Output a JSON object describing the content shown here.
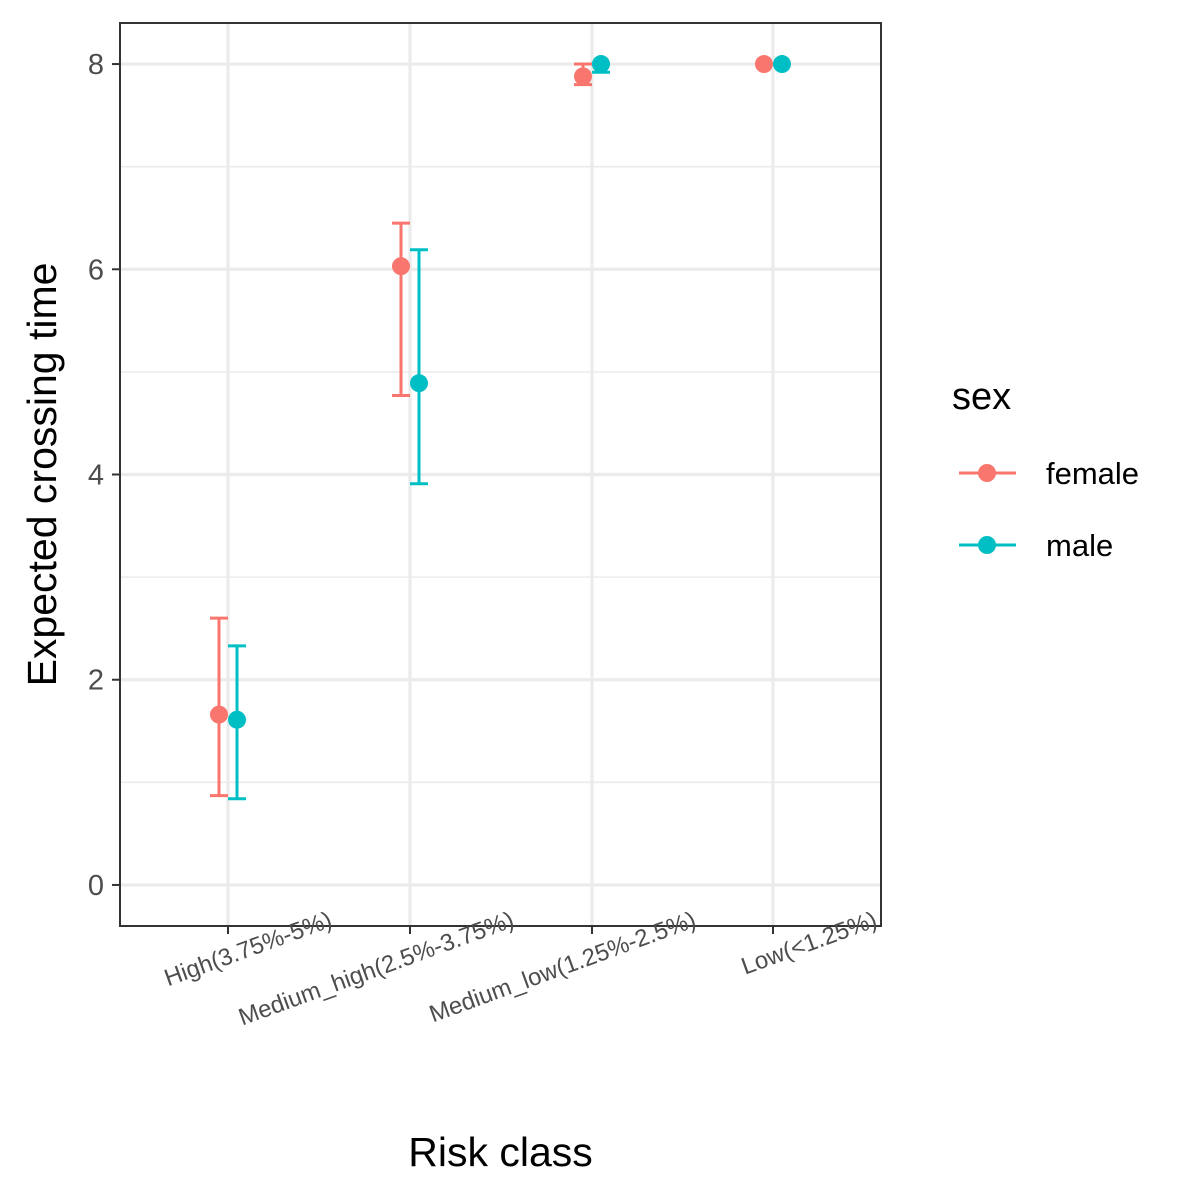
{
  "chart_data": {
    "type": "scatter",
    "xlabel": "Risk class",
    "ylabel": "Expected crossing time",
    "categories": [
      "High(3.75%-5%)",
      "Medium_high(2.5%-3.75%)",
      "Medium_low(1.25%-2.5%)",
      "Low(<1.25%)"
    ],
    "ylim": [
      -0.4,
      8.4
    ],
    "yticks": [
      0,
      2,
      4,
      6,
      8
    ],
    "grid": true,
    "legend": {
      "title": "sex",
      "position": "right"
    },
    "series": [
      {
        "name": "female",
        "color": "#F8766D",
        "values": [
          1.66,
          6.03,
          7.88,
          8.0
        ],
        "lower": [
          0.87,
          4.77,
          7.8,
          8.0
        ],
        "upper": [
          2.6,
          6.45,
          8.0,
          8.0
        ]
      },
      {
        "name": "male",
        "color": "#00BFC4",
        "values": [
          1.61,
          4.89,
          8.0,
          8.0
        ],
        "lower": [
          0.84,
          3.91,
          7.92,
          8.0
        ],
        "upper": [
          2.33,
          6.19,
          8.0,
          8.0
        ]
      }
    ]
  }
}
